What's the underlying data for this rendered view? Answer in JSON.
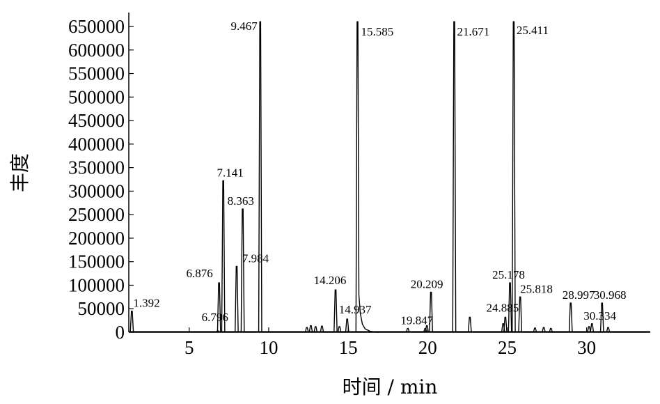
{
  "chart_data": {
    "type": "line",
    "title": "",
    "xlabel": "时间 / min",
    "ylabel": "丰度",
    "xlim": [
      1.2,
      34
    ],
    "ylim": [
      0,
      650000
    ],
    "x_ticks": [
      5,
      10,
      15,
      20,
      25,
      30
    ],
    "y_ticks": [
      0,
      50000,
      100000,
      150000,
      200000,
      250000,
      300000,
      350000,
      400000,
      450000,
      500000,
      550000,
      600000,
      650000
    ],
    "grid": false,
    "line_color": "#000000",
    "peaks": [
      {
        "time": 1.392,
        "abundance": 45000,
        "label": "1.392"
      },
      {
        "time": 6.796,
        "abundance": 3000,
        "label": "6.796"
      },
      {
        "time": 6.876,
        "abundance": 105000,
        "label": "6.876"
      },
      {
        "time": 7.141,
        "abundance": 322000,
        "label": "7.141"
      },
      {
        "time": 7.984,
        "abundance": 140000,
        "label": "7.984"
      },
      {
        "time": 8.363,
        "abundance": 262000,
        "label": "8.363"
      },
      {
        "time": 9.467,
        "abundance": 660000,
        "label": "9.467"
      },
      {
        "time": 14.206,
        "abundance": 90000,
        "label": "14.206"
      },
      {
        "time": 14.937,
        "abundance": 28000,
        "label": "14.937"
      },
      {
        "time": 15.585,
        "abundance": 660000,
        "label": "15.585"
      },
      {
        "time": 19.847,
        "abundance": 8000,
        "label": "19.847"
      },
      {
        "time": 20.209,
        "abundance": 85000,
        "label": "20.209"
      },
      {
        "time": 21.671,
        "abundance": 660000,
        "label": "21.671"
      },
      {
        "time": 24.885,
        "abundance": 32000,
        "label": "24.885"
      },
      {
        "time": 25.178,
        "abundance": 105000,
        "label": "25.178"
      },
      {
        "time": 25.411,
        "abundance": 660000,
        "label": "25.411"
      },
      {
        "time": 25.818,
        "abundance": 75000,
        "label": "25.818"
      },
      {
        "time": 28.997,
        "abundance": 62000,
        "label": "28.997"
      },
      {
        "time": 30.334,
        "abundance": 18000,
        "label": "30.334"
      },
      {
        "time": 30.968,
        "abundance": 62000,
        "label": "30.968"
      }
    ],
    "minor_peaks": [
      {
        "time": 12.4,
        "abundance": 10000
      },
      {
        "time": 12.65,
        "abundance": 14000
      },
      {
        "time": 12.95,
        "abundance": 12000
      },
      {
        "time": 13.35,
        "abundance": 13000
      },
      {
        "time": 14.45,
        "abundance": 12000
      },
      {
        "time": 18.75,
        "abundance": 8000
      },
      {
        "time": 19.95,
        "abundance": 14000
      },
      {
        "time": 22.65,
        "abundance": 32000
      },
      {
        "time": 24.75,
        "abundance": 18000
      },
      {
        "time": 26.75,
        "abundance": 9000
      },
      {
        "time": 27.3,
        "abundance": 10000
      },
      {
        "time": 27.75,
        "abundance": 8000
      },
      {
        "time": 30.15,
        "abundance": 12000
      },
      {
        "time": 31.35,
        "abundance": 10000
      }
    ]
  }
}
